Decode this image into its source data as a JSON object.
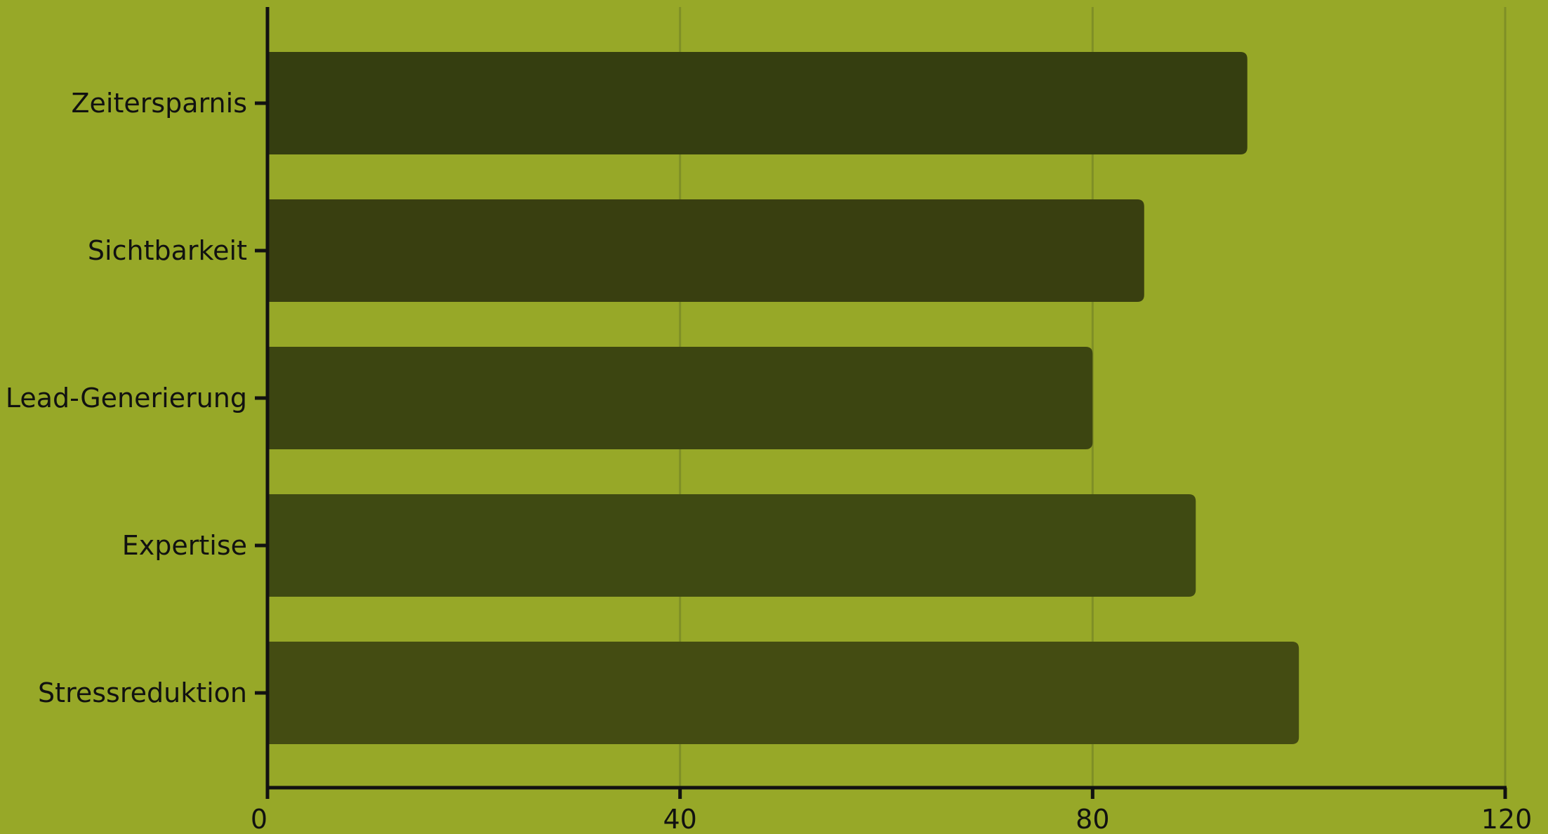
{
  "chart_data": {
    "type": "bar",
    "orientation": "horizontal",
    "categories": [
      "Zeitersparnis",
      "Sichtbarkeit",
      "Lead-Generierung",
      "Expertise",
      "Stressreduktion"
    ],
    "values": [
      95,
      85,
      80,
      90,
      100
    ],
    "xlim": [
      0,
      120
    ],
    "x_ticks": [
      0,
      40,
      80,
      120
    ],
    "title": "",
    "xlabel": "",
    "ylabel": "",
    "grid": "vertical",
    "legend": "none"
  },
  "colors": {
    "background": "#97a828",
    "bars": [
      "#353e10",
      "#393f10",
      "#3c4511",
      "#3f4a12",
      "#444c12"
    ],
    "gridline": "#7f8f26",
    "axis": "#111111"
  }
}
